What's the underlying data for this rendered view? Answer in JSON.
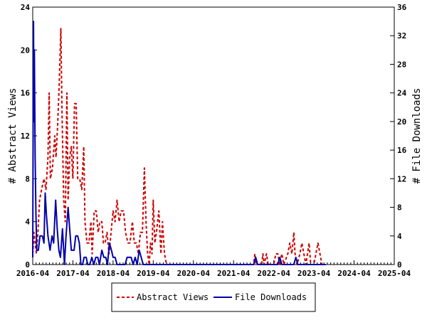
{
  "chart_data": {
    "type": "line",
    "x_tick_labels": [
      "2016-04",
      "2017-04",
      "2018-04",
      "2019-04",
      "2020-04",
      "2021-04",
      "2022-04",
      "2023-04",
      "2024-04",
      "2025-04"
    ],
    "y_left": {
      "label": "# Abstract Views",
      "range": [
        0,
        24
      ],
      "ticks": [
        0,
        4,
        8,
        12,
        16,
        20,
        24
      ]
    },
    "y_right": {
      "label": "# File Downloads",
      "range": [
        0,
        36
      ],
      "ticks": [
        0,
        4,
        8,
        12,
        16,
        20,
        24,
        28,
        32,
        36
      ]
    },
    "x_range": [
      0,
      9
    ],
    "series": [
      {
        "name": "Abstract Views",
        "axis": "left",
        "color": "#cc0000",
        "style": "dashed",
        "points": [
          [
            0.0,
            1
          ],
          [
            0.03,
            3
          ],
          [
            0.06,
            2
          ],
          [
            0.09,
            1
          ],
          [
            0.13,
            3
          ],
          [
            0.17,
            6
          ],
          [
            0.22,
            7
          ],
          [
            0.28,
            8
          ],
          [
            0.33,
            7
          ],
          [
            0.38,
            10
          ],
          [
            0.41,
            16
          ],
          [
            0.44,
            8
          ],
          [
            0.49,
            9
          ],
          [
            0.55,
            12
          ],
          [
            0.58,
            10
          ],
          [
            0.62,
            13
          ],
          [
            0.66,
            17
          ],
          [
            0.7,
            22
          ],
          [
            0.73,
            14
          ],
          [
            0.77,
            6
          ],
          [
            0.81,
            4
          ],
          [
            0.85,
            16
          ],
          [
            0.88,
            6
          ],
          [
            0.92,
            10
          ],
          [
            0.96,
            11
          ],
          [
            1.0,
            8
          ],
          [
            1.04,
            15
          ],
          [
            1.08,
            15
          ],
          [
            1.12,
            8
          ],
          [
            1.17,
            8
          ],
          [
            1.22,
            7
          ],
          [
            1.27,
            11
          ],
          [
            1.3,
            4
          ],
          [
            1.35,
            2
          ],
          [
            1.4,
            2
          ],
          [
            1.45,
            4
          ],
          [
            1.48,
            1
          ],
          [
            1.53,
            5
          ],
          [
            1.58,
            5
          ],
          [
            1.63,
            3
          ],
          [
            1.67,
            4
          ],
          [
            1.72,
            4
          ],
          [
            1.76,
            2
          ],
          [
            1.8,
            2
          ],
          [
            1.85,
            3
          ],
          [
            1.9,
            1
          ],
          [
            1.95,
            3
          ],
          [
            2.0,
            5
          ],
          [
            2.05,
            4
          ],
          [
            2.1,
            6
          ],
          [
            2.15,
            4
          ],
          [
            2.2,
            5
          ],
          [
            2.26,
            5
          ],
          [
            2.31,
            3
          ],
          [
            2.37,
            2
          ],
          [
            2.42,
            2
          ],
          [
            2.48,
            4
          ],
          [
            2.53,
            2
          ],
          [
            2.58,
            2
          ],
          [
            2.63,
            1
          ],
          [
            2.68,
            3
          ],
          [
            2.73,
            3
          ],
          [
            2.78,
            9
          ],
          [
            2.82,
            4
          ],
          [
            2.86,
            1
          ],
          [
            2.9,
            0
          ],
          [
            2.93,
            2
          ],
          [
            2.97,
            1
          ],
          [
            3.0,
            6
          ],
          [
            3.04,
            2
          ],
          [
            3.08,
            3
          ],
          [
            3.14,
            5
          ],
          [
            3.19,
            1
          ],
          [
            3.23,
            4
          ],
          [
            3.28,
            1
          ],
          [
            3.33,
            0
          ],
          [
            3.5,
            0
          ],
          [
            4.0,
            0
          ],
          [
            4.5,
            0
          ],
          [
            5.0,
            0
          ],
          [
            5.5,
            0
          ],
          [
            5.53,
            1
          ],
          [
            5.56,
            0
          ],
          [
            5.6,
            0
          ],
          [
            5.7,
            0
          ],
          [
            5.73,
            1
          ],
          [
            5.76,
            0
          ],
          [
            5.82,
            1
          ],
          [
            5.86,
            0
          ],
          [
            5.95,
            0
          ],
          [
            6.0,
            0
          ],
          [
            6.05,
            1
          ],
          [
            6.1,
            1
          ],
          [
            6.15,
            0
          ],
          [
            6.2,
            1
          ],
          [
            6.25,
            0
          ],
          [
            6.35,
            1
          ],
          [
            6.4,
            2
          ],
          [
            6.45,
            1
          ],
          [
            6.5,
            3
          ],
          [
            6.53,
            1
          ],
          [
            6.58,
            0
          ],
          [
            6.65,
            1
          ],
          [
            6.7,
            2
          ],
          [
            6.75,
            1
          ],
          [
            6.8,
            0
          ],
          [
            6.88,
            2
          ],
          [
            6.92,
            0
          ],
          [
            7.0,
            0
          ],
          [
            7.05,
            1
          ],
          [
            7.1,
            2
          ],
          [
            7.15,
            1
          ],
          [
            7.2,
            0
          ],
          [
            7.3,
            0
          ]
        ]
      },
      {
        "name": "File Downloads",
        "axis": "right",
        "color": "#0000aa",
        "style": "solid",
        "points": [
          [
            0.0,
            1
          ],
          [
            0.01,
            21
          ],
          [
            0.02,
            34
          ],
          [
            0.03,
            20
          ],
          [
            0.04,
            30
          ],
          [
            0.06,
            15
          ],
          [
            0.08,
            7
          ],
          [
            0.1,
            2
          ],
          [
            0.14,
            2
          ],
          [
            0.18,
            4
          ],
          [
            0.24,
            4
          ],
          [
            0.28,
            3
          ],
          [
            0.31,
            10
          ],
          [
            0.34,
            7
          ],
          [
            0.38,
            4
          ],
          [
            0.43,
            2
          ],
          [
            0.48,
            4
          ],
          [
            0.52,
            3
          ],
          [
            0.57,
            9
          ],
          [
            0.61,
            5
          ],
          [
            0.65,
            2
          ],
          [
            0.69,
            1
          ],
          [
            0.74,
            5
          ],
          [
            0.79,
            0
          ],
          [
            0.83,
            4
          ],
          [
            0.88,
            8
          ],
          [
            0.92,
            5
          ],
          [
            0.96,
            2
          ],
          [
            1.03,
            2
          ],
          [
            1.07,
            4
          ],
          [
            1.12,
            4
          ],
          [
            1.16,
            3
          ],
          [
            1.2,
            0
          ],
          [
            1.24,
            0
          ],
          [
            1.28,
            1
          ],
          [
            1.33,
            1
          ],
          [
            1.37,
            0
          ],
          [
            1.42,
            0
          ],
          [
            1.47,
            1
          ],
          [
            1.52,
            0
          ],
          [
            1.57,
            1
          ],
          [
            1.62,
            1
          ],
          [
            1.66,
            0
          ],
          [
            1.72,
            2
          ],
          [
            1.77,
            1
          ],
          [
            1.82,
            1
          ],
          [
            1.86,
            0
          ],
          [
            1.91,
            3
          ],
          [
            1.96,
            2
          ],
          [
            2.0,
            1
          ],
          [
            2.05,
            1
          ],
          [
            2.1,
            0
          ],
          [
            2.2,
            0
          ],
          [
            2.3,
            0
          ],
          [
            2.35,
            1
          ],
          [
            2.45,
            1
          ],
          [
            2.5,
            0
          ],
          [
            2.55,
            1
          ],
          [
            2.6,
            0
          ],
          [
            2.65,
            2
          ],
          [
            2.7,
            1
          ],
          [
            2.75,
            0
          ],
          [
            2.8,
            0
          ],
          [
            3.0,
            0
          ],
          [
            4.0,
            0
          ],
          [
            5.0,
            0
          ],
          [
            5.5,
            0
          ],
          [
            5.55,
            1
          ],
          [
            5.6,
            0
          ],
          [
            6.0,
            0
          ],
          [
            6.1,
            0
          ],
          [
            6.15,
            1
          ],
          [
            6.2,
            0
          ],
          [
            6.5,
            0
          ],
          [
            6.55,
            1
          ],
          [
            6.6,
            0
          ],
          [
            7.3,
            0
          ]
        ]
      }
    ],
    "legend": {
      "position": "bottom",
      "items": [
        "Abstract Views",
        "File Downloads"
      ]
    },
    "grid": false
  }
}
